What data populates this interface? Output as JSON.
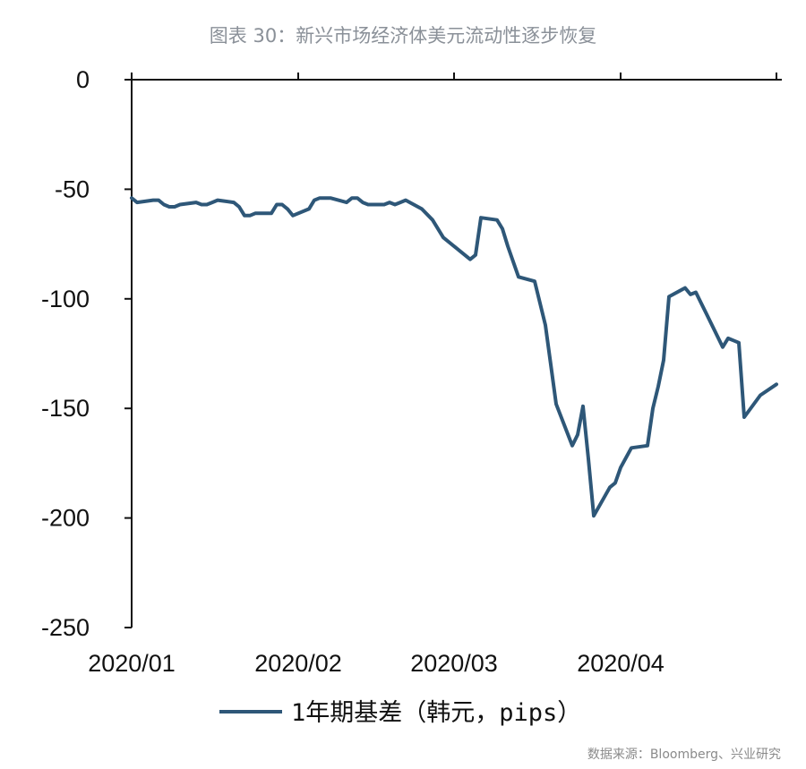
{
  "title": "图表 30：新兴市场经济体美元流动性逐步恢复",
  "source": "数据来源：Bloomberg、兴业研究",
  "colors": {
    "line": "#2e5778",
    "axis": "#111111"
  },
  "chart_data": {
    "type": "line",
    "ylim": [
      -250,
      0
    ],
    "yticks": [
      0,
      -50,
      -100,
      -150,
      -200,
      -250
    ],
    "ytick_labels": [
      "0",
      "-50",
      "-100",
      "-150",
      "-200",
      "-250"
    ],
    "xlim": [
      "2020-01-01",
      "2020-04-30"
    ],
    "xticks": [
      "2020-01-01",
      "2020-02-01",
      "2020-03-01",
      "2020-04-01"
    ],
    "xtick_labels": [
      "2020/01",
      "2020/02",
      "2020/03",
      "2020/04"
    ],
    "grid": false,
    "legend_position": "bottom",
    "series": [
      {
        "name": "1年期基差（韩元，pips）",
        "x": [
          "2020-01-01",
          "2020-01-02",
          "2020-01-05",
          "2020-01-06",
          "2020-01-07",
          "2020-01-08",
          "2020-01-09",
          "2020-01-10",
          "2020-01-13",
          "2020-01-14",
          "2020-01-15",
          "2020-01-16",
          "2020-01-17",
          "2020-01-20",
          "2020-01-21",
          "2020-01-22",
          "2020-01-23",
          "2020-01-24",
          "2020-01-27",
          "2020-01-28",
          "2020-01-29",
          "2020-01-30",
          "2020-01-31",
          "2020-02-03",
          "2020-02-04",
          "2020-02-05",
          "2020-02-06",
          "2020-02-07",
          "2020-02-10",
          "2020-02-11",
          "2020-02-12",
          "2020-02-13",
          "2020-02-14",
          "2020-02-17",
          "2020-02-18",
          "2020-02-19",
          "2020-02-20",
          "2020-02-21",
          "2020-02-24",
          "2020-02-26",
          "2020-02-28",
          "2020-03-02",
          "2020-03-04",
          "2020-03-05",
          "2020-03-06",
          "2020-03-09",
          "2020-03-10",
          "2020-03-11",
          "2020-03-13",
          "2020-03-16",
          "2020-03-18",
          "2020-03-19",
          "2020-03-20",
          "2020-03-23",
          "2020-03-24",
          "2020-03-25",
          "2020-03-26",
          "2020-03-27",
          "2020-03-30",
          "2020-03-31",
          "2020-04-01",
          "2020-04-03",
          "2020-04-06",
          "2020-04-07",
          "2020-04-08",
          "2020-04-09",
          "2020-04-10",
          "2020-04-13",
          "2020-04-14",
          "2020-04-15",
          "2020-04-16",
          "2020-04-17",
          "2020-04-20",
          "2020-04-21",
          "2020-04-22",
          "2020-04-23",
          "2020-04-24",
          "2020-04-27",
          "2020-04-30"
        ],
        "y": [
          -54,
          -56,
          -55,
          -55,
          -57,
          -58,
          -58,
          -57,
          -56,
          -57,
          -57,
          -56,
          -55,
          -56,
          -58,
          -62,
          -62,
          -61,
          -61,
          -57,
          -57,
          -59,
          -62,
          -59,
          -55,
          -54,
          -54,
          -54,
          -56,
          -54,
          -54,
          -56,
          -57,
          -57,
          -56,
          -57,
          -56,
          -55,
          -59,
          -64,
          -72,
          -78,
          -82,
          -80,
          -63,
          -64,
          -68,
          -76,
          -90,
          -92,
          -112,
          -130,
          -148,
          -167,
          -162,
          -149,
          -173,
          -199,
          -186,
          -184,
          -177,
          -168,
          -167,
          -150,
          -140,
          -128,
          -99,
          -95,
          -98,
          -97,
          -102,
          -107,
          -122,
          -118,
          -119,
          -120,
          -154,
          -144,
          -139
        ]
      }
    ]
  }
}
